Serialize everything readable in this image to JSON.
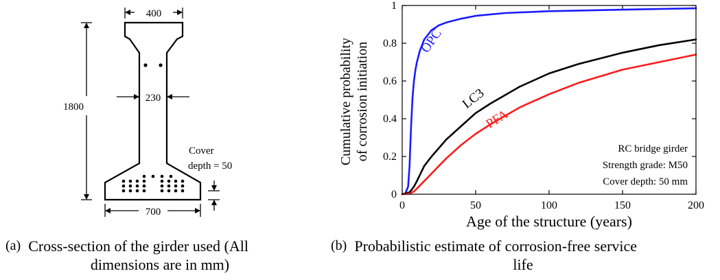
{
  "cross_section": {
    "top_width": "400",
    "web_width": "230",
    "height": "1800",
    "cover_label_1": "Cover",
    "cover_label_2": "depth = 50",
    "bottom_width": "700"
  },
  "chart": {
    "ylabel_line1": "Cumulative probability",
    "ylabel_line2": "of corrosion initiation",
    "xlabel": "Age of the structure (years)",
    "note_lines": [
      "RC bridge girder",
      "Strength grade: M50",
      "Cover depth: 50 mm"
    ]
  },
  "chart_data": {
    "type": "line",
    "xlim": [
      0,
      200
    ],
    "ylim": [
      0,
      1
    ],
    "xticks": [
      "0",
      "50",
      "100",
      "150",
      "200"
    ],
    "yticks": [
      "0",
      "0.2",
      "0.4",
      "0.6",
      "0.8",
      "1"
    ],
    "grid": false,
    "series": [
      {
        "name": "OPC",
        "color": "#1a1aff",
        "x": [
          0,
          2,
          4,
          5,
          6,
          7,
          8,
          9,
          10,
          12,
          15,
          20,
          25,
          30,
          40,
          50,
          70,
          100,
          150,
          200
        ],
        "y": [
          0,
          0.003,
          0.04,
          0.15,
          0.35,
          0.51,
          0.6,
          0.66,
          0.7,
          0.76,
          0.82,
          0.87,
          0.895,
          0.91,
          0.93,
          0.945,
          0.96,
          0.97,
          0.978,
          0.985
        ]
      },
      {
        "name": "LC3",
        "color": "#000000",
        "x": [
          0,
          5,
          8,
          10,
          15,
          20,
          30,
          40,
          50,
          60,
          80,
          100,
          120,
          150,
          175,
          200
        ],
        "y": [
          0,
          0.01,
          0.04,
          0.07,
          0.15,
          0.2,
          0.29,
          0.36,
          0.43,
          0.48,
          0.57,
          0.64,
          0.69,
          0.75,
          0.79,
          0.82
        ]
      },
      {
        "name": "PFA",
        "color": "#ff1a1a",
        "x": [
          0,
          5,
          8,
          10,
          15,
          20,
          30,
          40,
          50,
          60,
          80,
          100,
          120,
          150,
          175,
          200
        ],
        "y": [
          0,
          0.003,
          0.015,
          0.03,
          0.07,
          0.11,
          0.19,
          0.26,
          0.32,
          0.37,
          0.46,
          0.53,
          0.59,
          0.66,
          0.7,
          0.74
        ]
      }
    ]
  },
  "captions": {
    "a_letter": "(a)",
    "a_line1": "Cross-section of the girder used (All",
    "a_line2": "dimensions are in mm)",
    "b_letter": "(b)",
    "b_line1": "Probabilistic estimate of corrosion-free service",
    "b_line2": "life"
  }
}
